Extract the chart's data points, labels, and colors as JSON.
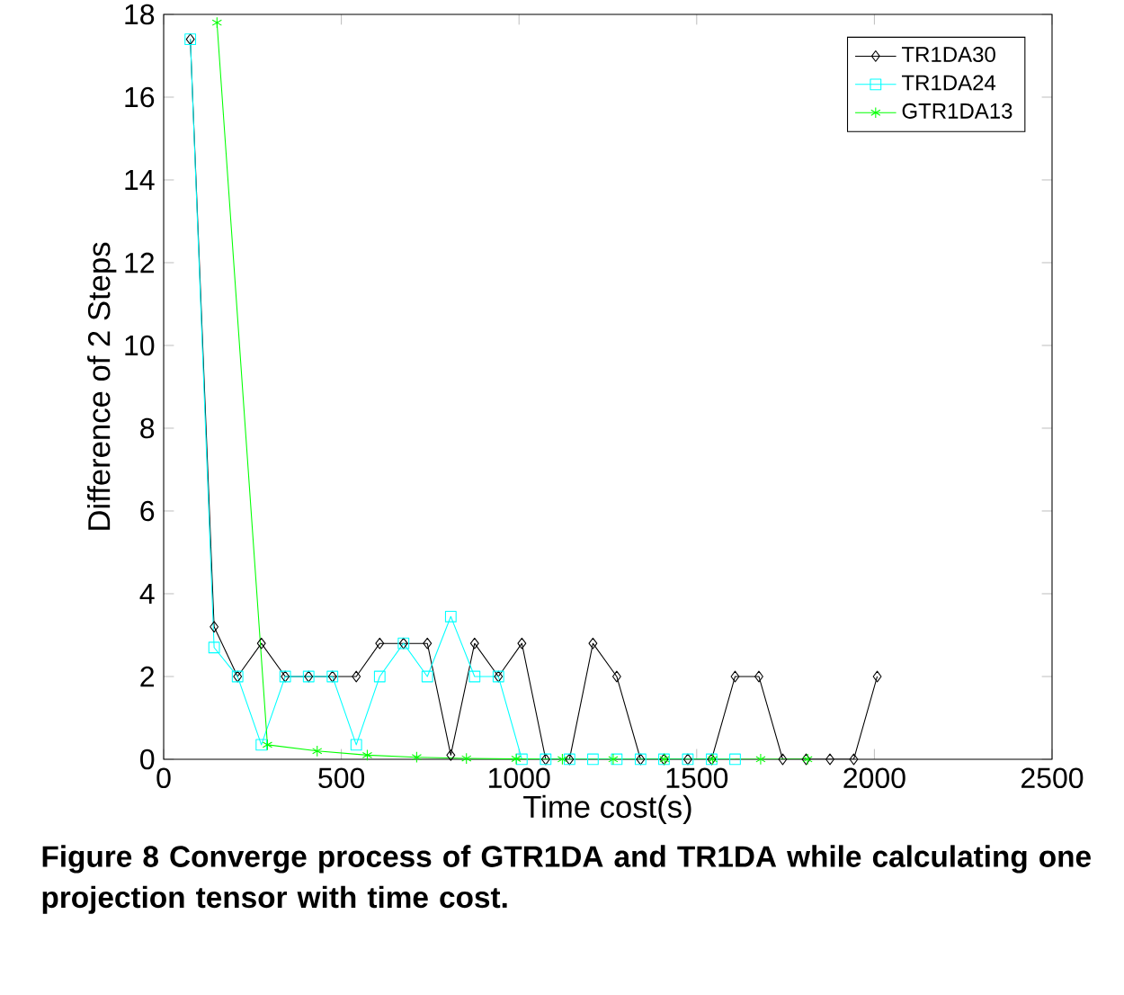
{
  "chart_data": {
    "type": "line",
    "xlabel": "Time cost(s)",
    "ylabel": "Difference of 2 Steps",
    "annotations": [
      "**Figure 8** Converge process of GTR1DA and TR1DA while calculating one projection tensor with time cost."
    ],
    "series": [
      {
        "name": "TR1DA30",
        "color": "#000000",
        "marker": "diamond",
        "x": [
          75,
          142,
          208,
          275,
          342,
          408,
          475,
          542,
          608,
          675,
          742,
          808,
          875,
          942,
          1008,
          1075,
          1142,
          1208,
          1275,
          1342,
          1408,
          1475,
          1542,
          1608,
          1675,
          1742,
          1808,
          1875,
          1942,
          2008
        ],
        "values": [
          17.4,
          3.2,
          2.0,
          2.8,
          2.0,
          2.0,
          2.0,
          2.0,
          2.8,
          2.8,
          2.8,
          0.1,
          2.8,
          2.0,
          2.8,
          0,
          0,
          2.8,
          2.0,
          0,
          0,
          0,
          0,
          2.0,
          2.0,
          0,
          0,
          0,
          0,
          2.0
        ]
      },
      {
        "name": "TR1DA24",
        "color": "#00ffff",
        "marker": "square",
        "x": [
          75,
          142,
          208,
          275,
          342,
          408,
          475,
          542,
          608,
          675,
          742,
          808,
          875,
          942,
          1008,
          1075,
          1142,
          1208,
          1275,
          1342,
          1408,
          1475,
          1542,
          1608
        ],
        "values": [
          17.4,
          2.7,
          2.0,
          0.35,
          2.0,
          2.0,
          2.0,
          0.35,
          2.0,
          2.8,
          2.0,
          3.45,
          2.0,
          2.0,
          0,
          0,
          0,
          0,
          0,
          0,
          0,
          0,
          0,
          0
        ]
      },
      {
        "name": "GTR1DA13",
        "color": "#00ff00",
        "marker": "cross",
        "x": [
          150,
          292,
          432,
          573,
          712,
          852,
          992,
          1122,
          1265,
          1410,
          1545,
          1680,
          1812
        ],
        "values": [
          17.8,
          0.35,
          0.2,
          0.1,
          0.05,
          0.02,
          0.01,
          0,
          0,
          0,
          0,
          0,
          0
        ]
      }
    ],
    "xlim": [
      0,
      2500
    ],
    "ylim": [
      0,
      18
    ],
    "xticks": [
      0,
      500,
      1000,
      1500,
      2000,
      2500
    ],
    "yticks": [
      0,
      2,
      4,
      6,
      8,
      10,
      12,
      14,
      16,
      18
    ],
    "legend": "top right",
    "line_style": "solid"
  }
}
